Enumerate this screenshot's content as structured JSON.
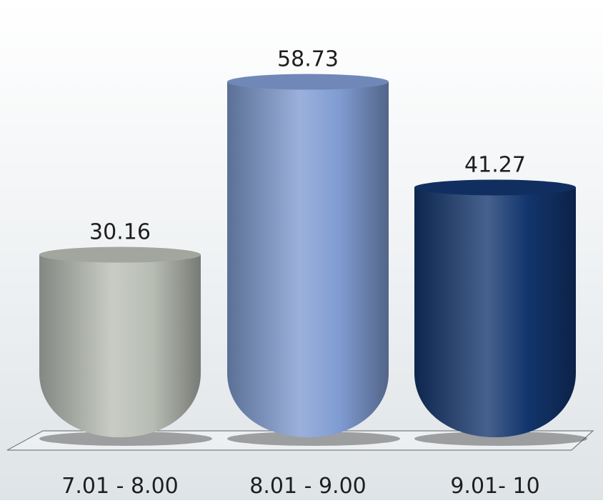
{
  "chart_data": {
    "type": "bar",
    "style": "3d-cylinder",
    "title": "",
    "xlabel": "",
    "ylabel": "",
    "categories": [
      "7.01 - 8.00",
      "8.01 - 9.00",
      "9.01- 10"
    ],
    "values": [
      30.16,
      58.73,
      41.27
    ],
    "value_labels": [
      "30.16",
      "58.73",
      "41.27"
    ],
    "colors": [
      "#b8bdb4",
      "#7f9bd1",
      "#12356d"
    ],
    "grid": false,
    "legend": "none"
  }
}
